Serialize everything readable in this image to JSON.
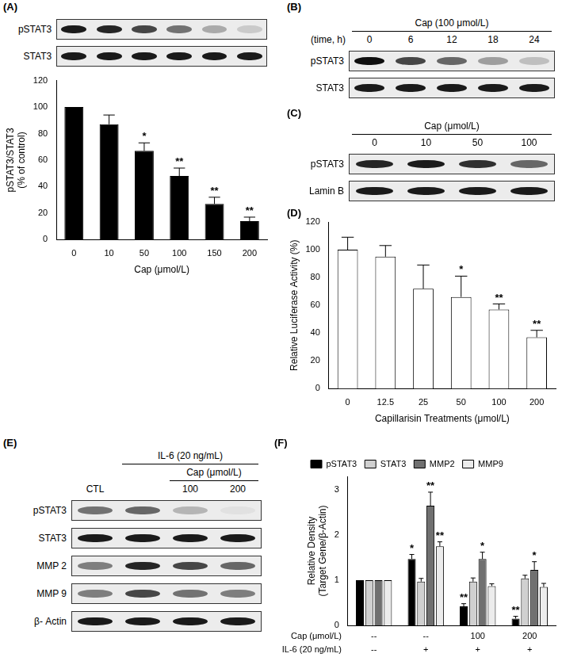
{
  "chart_data": [
    {
      "type": "bar",
      "categories": [
        "0",
        "10",
        "50",
        "100",
        "150",
        "200"
      ],
      "values": [
        100,
        87,
        67,
        48,
        27,
        14
      ],
      "errors": [
        0,
        7,
        6,
        6,
        5,
        3
      ],
      "annotations": [
        null,
        null,
        "*",
        "**",
        "**",
        "**"
      ],
      "color": "#000000",
      "x_label": "Cap (μmol/L)",
      "y_label": [
        "pSTAT3/STAT3",
        "(% of control)"
      ],
      "ylim": [
        0,
        120
      ],
      "yticks": [
        0,
        20,
        40,
        60,
        80,
        100,
        120
      ],
      "grid": false
    },
    {
      "type": "bar",
      "title": "(D)",
      "categories": [
        "0",
        "12.5",
        "25",
        "50",
        "100",
        "200"
      ],
      "values": [
        100,
        95,
        72,
        66,
        57,
        37
      ],
      "errors": [
        9,
        8,
        17,
        15,
        4,
        5
      ],
      "annotations": [
        null,
        null,
        null,
        "*",
        "**",
        "**"
      ],
      "color": "#ffffff",
      "x_label": "Capillarisin Treatments (μmol/L)",
      "y_label": "Relative Luciferase Activity (%)",
      "ylim": [
        0,
        120
      ],
      "yticks": [
        0,
        20,
        40,
        60,
        80,
        100,
        120
      ],
      "grid": false
    },
    {
      "type": "bar",
      "title": "(F)",
      "categories": [
        [
          "--",
          "--"
        ],
        [
          "--",
          "+"
        ],
        [
          "100",
          "+"
        ],
        [
          "200",
          "+"
        ]
      ],
      "x_label": [
        "Cap (μmol/L)",
        "IL-6 (20 ng/mL)"
      ],
      "y_label": [
        "Relative Density",
        "(Target Gene/β-Actin)"
      ],
      "series": [
        {
          "name": "pSTAT3",
          "color": "#000000",
          "values": [
            1,
            1.47,
            0.42,
            0.15
          ],
          "errors": [
            0,
            0.1,
            0.06,
            0.05
          ],
          "annotations": [
            null,
            "*",
            "**",
            "**"
          ]
        },
        {
          "name": "STAT3",
          "color": "#d0d0d0",
          "values": [
            1,
            0.97,
            0.97,
            1.04
          ],
          "errors": [
            0,
            0.07,
            0.08,
            0.07
          ],
          "annotations": [
            null,
            null,
            null,
            null
          ]
        },
        {
          "name": "MMP2",
          "color": "#707070",
          "values": [
            1,
            2.65,
            1.47,
            1.23
          ],
          "errors": [
            0,
            0.3,
            0.15,
            0.18
          ],
          "annotations": [
            null,
            "**",
            "*",
            "*"
          ]
        },
        {
          "name": "MMP9",
          "color": "#ececec",
          "values": [
            1,
            1.75,
            0.87,
            0.85
          ],
          "errors": [
            0,
            0.1,
            0.05,
            0.08
          ],
          "annotations": [
            null,
            "**",
            null,
            null
          ]
        }
      ],
      "legend": "upper left",
      "ylim": [
        0,
        3.3
      ],
      "yticks": [
        0,
        1,
        2,
        3
      ],
      "grid": false
    }
  ],
  "blots": [
    {
      "panel": "(A)",
      "rows": [
        {
          "label": "pSTAT3",
          "bands": [
            0.95,
            0.9,
            0.75,
            0.55,
            0.3,
            0.15
          ]
        },
        {
          "label": "STAT3",
          "bands": [
            0.95,
            0.95,
            0.95,
            0.95,
            0.95,
            0.95
          ]
        }
      ]
    },
    {
      "panel": "(B)",
      "headers": [
        {
          "text": "Cap (100 μmol/L)",
          "lanes": [
            0,
            4
          ]
        }
      ],
      "lane_label_title": "(time, h)",
      "lane_labels": [
        "0",
        "6",
        "12",
        "18",
        "24"
      ],
      "rows": [
        {
          "label": "pSTAT3",
          "bands": [
            1,
            0.75,
            0.6,
            0.35,
            0.2
          ]
        },
        {
          "label": "STAT3",
          "bands": [
            0.95,
            0.95,
            0.95,
            0.95,
            0.95
          ]
        }
      ]
    },
    {
      "panel": "(C)",
      "headers": [
        {
          "text": "Cap (μmol/L)",
          "lanes": [
            0,
            3
          ]
        }
      ],
      "lane_labels": [
        "0",
        "10",
        "50",
        "100"
      ],
      "rows": [
        {
          "label": "pSTAT3",
          "bands": [
            0.9,
            0.95,
            0.85,
            0.6
          ]
        },
        {
          "label": "Lamin B",
          "bands": [
            0.95,
            0.95,
            0.95,
            0.95
          ]
        }
      ]
    },
    {
      "panel": "(E)",
      "headers": [
        {
          "text": "IL-6 (20 ng/mL)",
          "lanes": [
            1,
            3
          ]
        },
        {
          "text": "Cap (μmol/L)",
          "lanes": [
            2,
            3
          ]
        }
      ],
      "lane_labels": [
        "CTL",
        null,
        "100",
        "200"
      ],
      "rows": [
        {
          "label": "pSTAT3",
          "bands": [
            0.55,
            0.6,
            0.25,
            0.05
          ]
        },
        {
          "label": "STAT3",
          "bands": [
            0.95,
            0.95,
            0.95,
            0.95
          ]
        },
        {
          "label": "MMP 2",
          "bands": [
            0.5,
            0.9,
            0.75,
            0.6
          ]
        },
        {
          "label": "MMP 9",
          "bands": [
            0.5,
            0.75,
            0.55,
            0.5
          ]
        },
        {
          "label": "β- Actin",
          "bands": [
            0.95,
            0.95,
            0.95,
            0.95
          ]
        }
      ]
    }
  ]
}
